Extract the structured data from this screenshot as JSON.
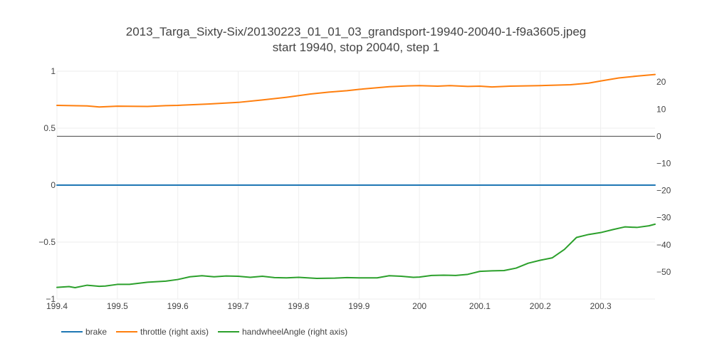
{
  "chart_data": {
    "type": "line",
    "title": "2013_Targa_Sixty-Six/20130223_01_01_03_grandsport-19940-20040-1-f9a3605.jpeg",
    "subtitle": "start 19940, stop 20040, step 1",
    "xlim": [
      199.4,
      200.39
    ],
    "ylim_left": [
      -1,
      1
    ],
    "ylim_right": [
      -60,
      24
    ],
    "x_ticks": [
      199.4,
      199.5,
      199.6,
      199.7,
      199.8,
      199.9,
      200,
      200.1,
      200.2,
      200.3
    ],
    "x_tick_labels": [
      "199.4",
      "199.5",
      "199.6",
      "199.7",
      "199.8",
      "199.9",
      "200",
      "200.1",
      "200.2",
      "200.3"
    ],
    "y_left_ticks": [
      1,
      0.5,
      0,
      -0.5,
      -1
    ],
    "y_left_tick_labels": [
      "1",
      "0.5",
      "0",
      "−0.5",
      "−1"
    ],
    "y_right_ticks": [
      20,
      10,
      0,
      -10,
      -20,
      -30,
      -40,
      -50
    ],
    "y_right_tick_labels": [
      "20",
      "10",
      "0",
      "−10",
      "−20",
      "−30",
      "−40",
      "−50"
    ],
    "grid": true,
    "legend_position": "bottom-left",
    "series": [
      {
        "name": "brake",
        "axis": "left",
        "color": "#1f77b4",
        "x": [
          199.4,
          200.39
        ],
        "y": [
          0,
          0
        ]
      },
      {
        "name": "throttle (right axis)",
        "axis": "right",
        "color": "#ff7f0e",
        "x": [
          199.4,
          199.45,
          199.47,
          199.5,
          199.55,
          199.58,
          199.6,
          199.65,
          199.7,
          199.74,
          199.78,
          199.82,
          199.85,
          199.88,
          199.9,
          199.95,
          199.98,
          200.0,
          200.03,
          200.05,
          200.08,
          200.1,
          200.12,
          200.15,
          200.2,
          200.25,
          200.28,
          200.3,
          200.33,
          200.36,
          200.39
        ],
        "y": [
          11.4,
          11.2,
          10.8,
          11.1,
          11.0,
          11.3,
          11.4,
          11.9,
          12.5,
          13.4,
          14.4,
          15.6,
          16.3,
          16.8,
          17.3,
          18.3,
          18.6,
          18.7,
          18.5,
          18.7,
          18.4,
          18.5,
          18.2,
          18.5,
          18.7,
          19.0,
          19.6,
          20.4,
          21.5,
          22.2,
          22.8
        ]
      },
      {
        "name": "handwheelAngle (right axis)",
        "axis": "right",
        "color": "#2ca02c",
        "x": [
          199.4,
          199.42,
          199.43,
          199.45,
          199.47,
          199.48,
          199.5,
          199.52,
          199.55,
          199.58,
          199.6,
          199.62,
          199.64,
          199.66,
          199.68,
          199.7,
          199.72,
          199.74,
          199.76,
          199.78,
          199.8,
          199.83,
          199.86,
          199.88,
          199.9,
          199.93,
          199.95,
          199.97,
          199.99,
          200.0,
          200.02,
          200.04,
          200.06,
          200.08,
          200.1,
          200.12,
          200.14,
          200.16,
          200.18,
          200.2,
          200.22,
          200.24,
          200.26,
          200.28,
          200.3,
          200.32,
          200.34,
          200.36,
          200.38,
          200.39
        ],
        "y": [
          -55.7,
          -55.4,
          -55.8,
          -54.9,
          -55.3,
          -55.2,
          -54.6,
          -54.6,
          -53.8,
          -53.4,
          -52.8,
          -51.8,
          -51.4,
          -51.8,
          -51.5,
          -51.6,
          -52.0,
          -51.6,
          -52.1,
          -52.2,
          -52.0,
          -52.4,
          -52.3,
          -52.1,
          -52.2,
          -52.2,
          -51.4,
          -51.6,
          -52.0,
          -51.9,
          -51.3,
          -51.2,
          -51.3,
          -50.9,
          -49.8,
          -49.6,
          -49.5,
          -48.6,
          -46.8,
          -45.7,
          -44.8,
          -41.7,
          -37.3,
          -36.2,
          -35.5,
          -34.4,
          -33.4,
          -33.6,
          -33.0,
          -32.4
        ]
      }
    ]
  }
}
